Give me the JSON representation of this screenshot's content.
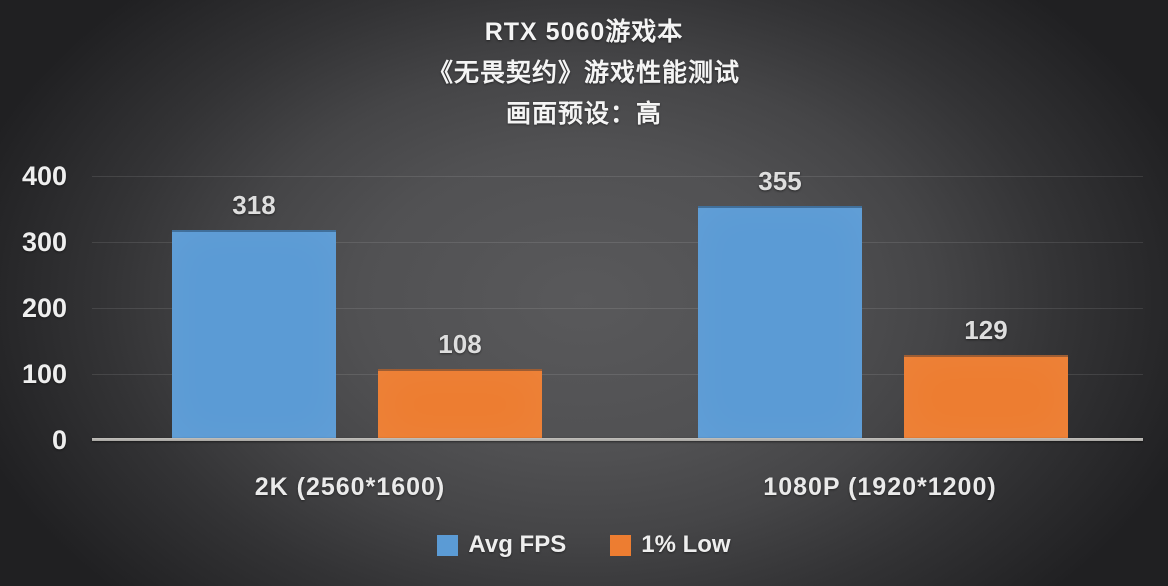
{
  "chart_data": {
    "type": "bar",
    "title_lines": [
      "RTX 5060游戏本",
      "《无畏契约》游戏性能测试",
      "画面预设：高"
    ],
    "categories": [
      "2K (2560*1600)",
      "1080P (1920*1200)"
    ],
    "series": [
      {
        "name": "Avg FPS",
        "color": "#5b9bd5",
        "values": [
          318,
          355
        ]
      },
      {
        "name": "1% Low",
        "color": "#ed7d31",
        "values": [
          108,
          129
        ]
      }
    ],
    "ylabel": "",
    "xlabel": "",
    "ylim": [
      0,
      400
    ],
    "yticks": [
      "400",
      "300",
      "200",
      "100",
      "0"
    ],
    "grid": "horizontal-only",
    "legend_position": "bottom-center",
    "background": "dark-radial-gray",
    "text_color": "#eeeeee"
  }
}
